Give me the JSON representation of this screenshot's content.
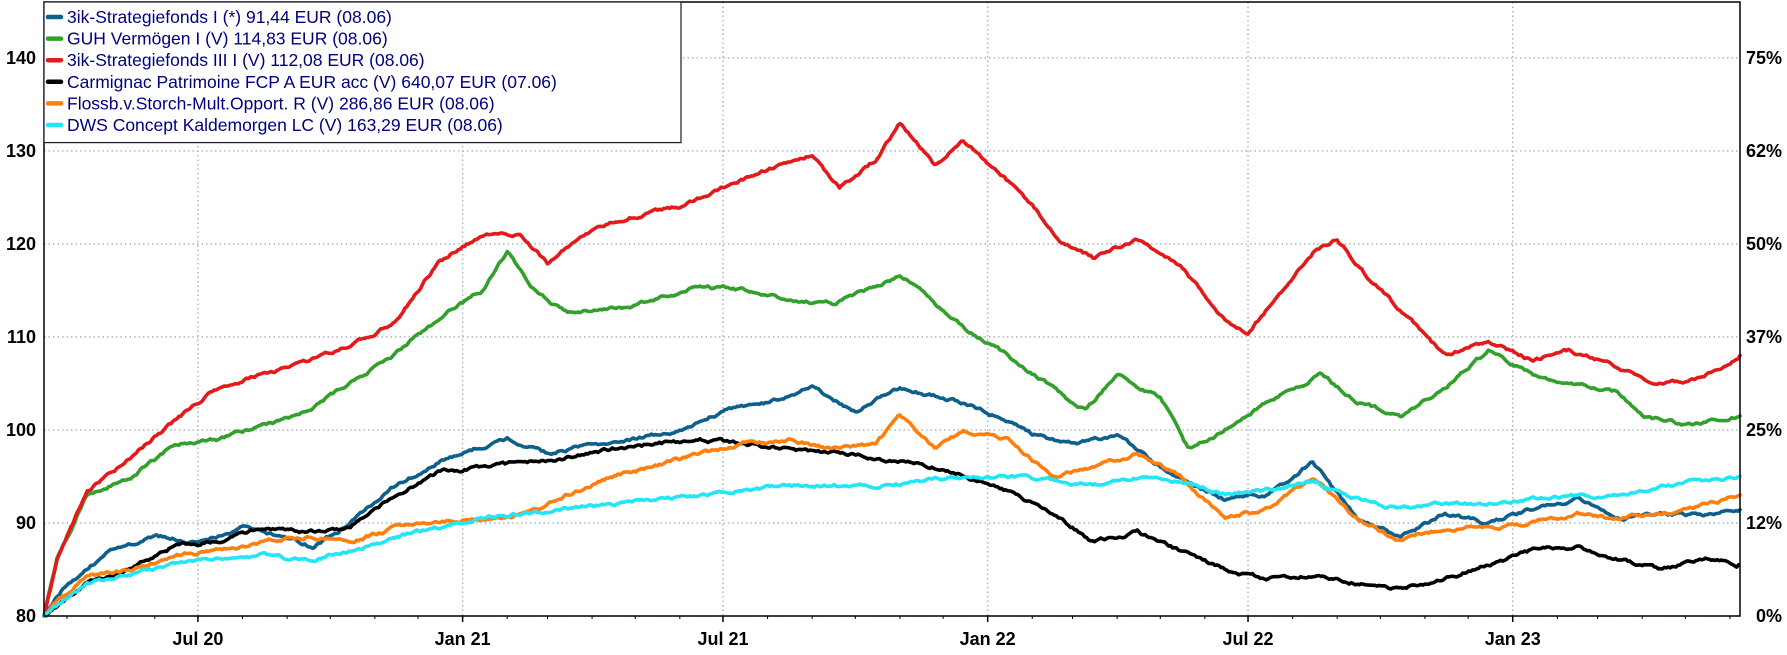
{
  "chart_data": {
    "type": "line",
    "title": "",
    "left_axis": {
      "ticks": [
        80,
        90,
        100,
        110,
        120,
        130,
        140
      ],
      "range": [
        80,
        146
      ]
    },
    "right_axis": {
      "ticks": [
        "0%",
        "12%",
        "25%",
        "37%",
        "50%",
        "62%",
        "75%"
      ]
    },
    "x_axis": {
      "start": "2020-03-16",
      "end": "2023-06-08",
      "ticks": [
        {
          "label": "Jul 20",
          "date": "2020-07-01"
        },
        {
          "label": "Jan 21",
          "date": "2021-01-01"
        },
        {
          "label": "Jul 21",
          "date": "2021-07-01"
        },
        {
          "label": "Jan 22",
          "date": "2022-01-01"
        },
        {
          "label": "Jul 22",
          "date": "2022-07-01"
        },
        {
          "label": "Jan 23",
          "date": "2023-01-01"
        }
      ]
    },
    "grid": true,
    "legend_position": "top-left",
    "series": [
      {
        "name": "3ik-Strategiefonds I (*) 91,44 EUR (08.06)",
        "color": "#0d5f8c",
        "points": [
          [
            "2020-03-16",
            80
          ],
          [
            "2020-04-01",
            83.5
          ],
          [
            "2020-05-01",
            87
          ],
          [
            "2020-06-01",
            88.5
          ],
          [
            "2020-07-01",
            88
          ],
          [
            "2020-08-01",
            89.5
          ],
          [
            "2020-09-01",
            88.5
          ],
          [
            "2020-09-20",
            87.5
          ],
          [
            "2020-10-15",
            90
          ],
          [
            "2020-11-15",
            94
          ],
          [
            "2020-12-15",
            96.5
          ],
          [
            "2021-01-10",
            98
          ],
          [
            "2021-02-01",
            99
          ],
          [
            "2021-03-01",
            97.5
          ],
          [
            "2021-04-01",
            98.5
          ],
          [
            "2021-05-01",
            99
          ],
          [
            "2021-06-01",
            100
          ],
          [
            "2021-07-01",
            102
          ],
          [
            "2021-08-01",
            103
          ],
          [
            "2021-09-01",
            104.5
          ],
          [
            "2021-10-01",
            102
          ],
          [
            "2021-11-01",
            104.5
          ],
          [
            "2021-12-01",
            103.5
          ],
          [
            "2022-01-01",
            102
          ],
          [
            "2022-02-01",
            99.5
          ],
          [
            "2022-03-01",
            98.5
          ],
          [
            "2022-04-01",
            99.5
          ],
          [
            "2022-05-01",
            96
          ],
          [
            "2022-06-15",
            92.5
          ],
          [
            "2022-07-15",
            93
          ],
          [
            "2022-08-15",
            96.5
          ],
          [
            "2022-09-15",
            90.5
          ],
          [
            "2022-10-15",
            88.5
          ],
          [
            "2022-11-15",
            91
          ],
          [
            "2022-12-15",
            90
          ],
          [
            "2023-01-15",
            91.5
          ],
          [
            "2023-02-15",
            92.5
          ],
          [
            "2023-03-15",
            90.5
          ],
          [
            "2023-04-15",
            91
          ],
          [
            "2023-05-15",
            90.8
          ],
          [
            "2023-06-08",
            91.44
          ]
        ]
      },
      {
        "name": "GUH Vermögen I (V) 114,83 EUR (08.06)",
        "color": "#33a02c",
        "points": [
          [
            "2020-03-16",
            80
          ],
          [
            "2020-03-25",
            86
          ],
          [
            "2020-04-15",
            93
          ],
          [
            "2020-05-15",
            95
          ],
          [
            "2020-06-15",
            98.5
          ],
          [
            "2020-07-15",
            99
          ],
          [
            "2020-08-15",
            100.5
          ],
          [
            "2020-09-15",
            102
          ],
          [
            "2020-10-15",
            105
          ],
          [
            "2020-11-15",
            108
          ],
          [
            "2020-12-15",
            112
          ],
          [
            "2021-01-15",
            115
          ],
          [
            "2021-02-01",
            119
          ],
          [
            "2021-02-20",
            115
          ],
          [
            "2021-03-15",
            112.5
          ],
          [
            "2021-04-15",
            113
          ],
          [
            "2021-05-15",
            114
          ],
          [
            "2021-06-15",
            115.5
          ],
          [
            "2021-07-15",
            115
          ],
          [
            "2021-08-15",
            114
          ],
          [
            "2021-09-15",
            113.5
          ],
          [
            "2021-10-15",
            115.5
          ],
          [
            "2021-11-01",
            116.5
          ],
          [
            "2021-11-20",
            114.5
          ],
          [
            "2021-12-15",
            111
          ],
          [
            "2022-01-15",
            108
          ],
          [
            "2022-02-15",
            104.5
          ],
          [
            "2022-03-10",
            102
          ],
          [
            "2022-04-01",
            106
          ],
          [
            "2022-05-01",
            103.5
          ],
          [
            "2022-05-20",
            98
          ],
          [
            "2022-06-15",
            100
          ],
          [
            "2022-07-15",
            103
          ],
          [
            "2022-08-20",
            106
          ],
          [
            "2022-09-15",
            103
          ],
          [
            "2022-10-15",
            101.5
          ],
          [
            "2022-11-15",
            104.5
          ],
          [
            "2022-12-15",
            108.5
          ],
          [
            "2023-01-15",
            106
          ],
          [
            "2023-02-15",
            105
          ],
          [
            "2023-03-15",
            104
          ],
          [
            "2023-04-01",
            101.5
          ],
          [
            "2023-05-01",
            100.5
          ],
          [
            "2023-06-08",
            101.5
          ]
        ]
      },
      {
        "name": "3ik-Strategiefonds III I (V) 112,08 EUR (08.06)",
        "color": "#e31a1c",
        "points": [
          [
            "2020-03-16",
            80
          ],
          [
            "2020-03-25",
            86
          ],
          [
            "2020-04-15",
            93.5
          ],
          [
            "2020-05-15",
            97
          ],
          [
            "2020-06-15",
            101
          ],
          [
            "2020-07-15",
            104.5
          ],
          [
            "2020-08-15",
            106
          ],
          [
            "2020-09-15",
            107.5
          ],
          [
            "2020-10-15",
            109
          ],
          [
            "2020-11-15",
            111.5
          ],
          [
            "2020-12-15",
            118
          ],
          [
            "2021-01-15",
            121
          ],
          [
            "2021-02-10",
            121
          ],
          [
            "2021-03-01",
            118
          ],
          [
            "2021-04-01",
            121.5
          ],
          [
            "2021-05-01",
            123
          ],
          [
            "2021-06-01",
            124
          ],
          [
            "2021-07-01",
            126
          ],
          [
            "2021-08-01",
            128
          ],
          [
            "2021-09-01",
            129.5
          ],
          [
            "2021-09-20",
            126
          ],
          [
            "2021-10-15",
            129
          ],
          [
            "2021-11-01",
            133
          ],
          [
            "2021-11-25",
            128.5
          ],
          [
            "2021-12-15",
            131
          ],
          [
            "2022-01-10",
            127.5
          ],
          [
            "2022-02-01",
            124
          ],
          [
            "2022-02-20",
            120.5
          ],
          [
            "2022-03-15",
            118.5
          ],
          [
            "2022-04-15",
            120.5
          ],
          [
            "2022-05-15",
            117.5
          ],
          [
            "2022-06-15",
            112
          ],
          [
            "2022-07-01",
            110.5
          ],
          [
            "2022-07-20",
            114
          ],
          [
            "2022-08-15",
            119
          ],
          [
            "2022-09-01",
            120.5
          ],
          [
            "2022-09-25",
            116
          ],
          [
            "2022-10-20",
            112
          ],
          [
            "2022-11-15",
            108
          ],
          [
            "2022-12-15",
            109.5
          ],
          [
            "2023-01-15",
            107.5
          ],
          [
            "2023-02-10",
            108.5
          ],
          [
            "2023-03-10",
            107
          ],
          [
            "2023-04-10",
            105
          ],
          [
            "2023-05-10",
            105.5
          ],
          [
            "2023-06-08",
            108
          ]
        ]
      },
      {
        "name": "Carmignac Patrimoine FCP A EUR acc (V) 640,07 EUR (07.06)",
        "color": "#000000",
        "points": [
          [
            "2020-03-16",
            80
          ],
          [
            "2020-04-15",
            83.5
          ],
          [
            "2020-05-15",
            85
          ],
          [
            "2020-06-15",
            87.5
          ],
          [
            "2020-07-15",
            88
          ],
          [
            "2020-08-15",
            89.5
          ],
          [
            "2020-09-15",
            89
          ],
          [
            "2020-10-15",
            89.5
          ],
          [
            "2020-11-15",
            93
          ],
          [
            "2020-12-15",
            95.5
          ],
          [
            "2021-01-15",
            96
          ],
          [
            "2021-02-15",
            96.5
          ],
          [
            "2021-03-15",
            97
          ],
          [
            "2021-04-15",
            98
          ],
          [
            "2021-05-15",
            98.5
          ],
          [
            "2021-06-15",
            99
          ],
          [
            "2021-07-15",
            98.5
          ],
          [
            "2021-08-15",
            98
          ],
          [
            "2021-09-15",
            97.5
          ],
          [
            "2021-10-15",
            97
          ],
          [
            "2021-11-15",
            96.5
          ],
          [
            "2021-12-15",
            95
          ],
          [
            "2022-01-15",
            93.5
          ],
          [
            "2022-02-15",
            91
          ],
          [
            "2022-03-15",
            88
          ],
          [
            "2022-04-15",
            89
          ],
          [
            "2022-05-15",
            87
          ],
          [
            "2022-06-15",
            85
          ],
          [
            "2022-07-15",
            84
          ],
          [
            "2022-08-15",
            84.5
          ],
          [
            "2022-09-15",
            83.5
          ],
          [
            "2022-10-15",
            83
          ],
          [
            "2022-11-15",
            84
          ],
          [
            "2022-12-15",
            85.5
          ],
          [
            "2023-01-15",
            87
          ],
          [
            "2023-02-15",
            87.5
          ],
          [
            "2023-03-15",
            86
          ],
          [
            "2023-04-15",
            85
          ],
          [
            "2023-05-15",
            86
          ],
          [
            "2023-06-07",
            85.5
          ]
        ]
      },
      {
        "name": "Flossb.v.Storch-Mult.Opport. R (V) 286,86 EUR (08.06)",
        "color": "#ff7f0e",
        "points": [
          [
            "2020-03-16",
            80
          ],
          [
            "2020-04-15",
            84.5
          ],
          [
            "2020-05-15",
            85
          ],
          [
            "2020-06-15",
            86.5
          ],
          [
            "2020-07-15",
            87
          ],
          [
            "2020-08-15",
            88
          ],
          [
            "2020-09-15",
            88.5
          ],
          [
            "2020-10-15",
            88
          ],
          [
            "2020-11-15",
            89.5
          ],
          [
            "2020-12-15",
            90
          ],
          [
            "2021-01-15",
            90.5
          ],
          [
            "2021-02-15",
            91
          ],
          [
            "2021-03-15",
            93
          ],
          [
            "2021-04-15",
            95
          ],
          [
            "2021-05-15",
            96
          ],
          [
            "2021-06-15",
            97.5
          ],
          [
            "2021-07-15",
            98.5
          ],
          [
            "2021-08-15",
            99
          ],
          [
            "2021-09-15",
            98
          ],
          [
            "2021-10-15",
            98.5
          ],
          [
            "2021-11-01",
            101.5
          ],
          [
            "2021-11-25",
            98
          ],
          [
            "2021-12-15",
            100
          ],
          [
            "2022-01-15",
            99
          ],
          [
            "2022-02-15",
            95
          ],
          [
            "2022-03-15",
            96
          ],
          [
            "2022-04-15",
            97.5
          ],
          [
            "2022-05-15",
            95
          ],
          [
            "2022-06-15",
            90.5
          ],
          [
            "2022-07-15",
            91.5
          ],
          [
            "2022-08-15",
            95
          ],
          [
            "2022-09-15",
            90.5
          ],
          [
            "2022-10-15",
            88
          ],
          [
            "2022-11-15",
            89.5
          ],
          [
            "2022-12-15",
            89.5
          ],
          [
            "2023-01-15",
            90
          ],
          [
            "2023-02-15",
            91
          ],
          [
            "2023-03-15",
            90.5
          ],
          [
            "2023-04-15",
            91
          ],
          [
            "2023-05-15",
            92
          ],
          [
            "2023-06-08",
            93
          ]
        ]
      },
      {
        "name": "DWS Concept Kaldemorgen LC (V) 163,29 EUR (08.06)",
        "color": "#22e5f5",
        "points": [
          [
            "2020-03-16",
            80
          ],
          [
            "2020-04-15",
            83.5
          ],
          [
            "2020-05-15",
            84.5
          ],
          [
            "2020-06-15",
            85.5
          ],
          [
            "2020-07-15",
            86
          ],
          [
            "2020-08-15",
            86.5
          ],
          [
            "2020-09-15",
            86
          ],
          [
            "2020-10-15",
            87
          ],
          [
            "2020-11-15",
            88.5
          ],
          [
            "2020-12-15",
            89.5
          ],
          [
            "2021-01-15",
            90.5
          ],
          [
            "2021-02-15",
            91
          ],
          [
            "2021-03-15",
            91.5
          ],
          [
            "2021-04-15",
            92
          ],
          [
            "2021-05-15",
            92.5
          ],
          [
            "2021-06-15",
            93
          ],
          [
            "2021-07-15",
            93.5
          ],
          [
            "2021-08-15",
            94
          ],
          [
            "2021-09-15",
            94
          ],
          [
            "2021-10-15",
            94
          ],
          [
            "2021-11-15",
            94.5
          ],
          [
            "2021-12-15",
            95
          ],
          [
            "2022-01-15",
            95
          ],
          [
            "2022-02-15",
            94.5
          ],
          [
            "2022-03-15",
            94
          ],
          [
            "2022-04-15",
            95
          ],
          [
            "2022-05-15",
            94.5
          ],
          [
            "2022-06-15",
            93
          ],
          [
            "2022-07-15",
            93.5
          ],
          [
            "2022-08-15",
            94.5
          ],
          [
            "2022-09-15",
            92.5
          ],
          [
            "2022-10-15",
            91.5
          ],
          [
            "2022-11-15",
            92
          ],
          [
            "2022-12-15",
            92
          ],
          [
            "2023-01-15",
            92.5
          ],
          [
            "2023-02-15",
            93
          ],
          [
            "2023-03-15",
            93
          ],
          [
            "2023-04-15",
            94
          ],
          [
            "2023-05-15",
            94.5
          ],
          [
            "2023-06-08",
            95
          ]
        ]
      }
    ]
  },
  "colors": {
    "background": "#ffffff",
    "grid": "#a9b7c3",
    "legend_text": "#000080"
  }
}
